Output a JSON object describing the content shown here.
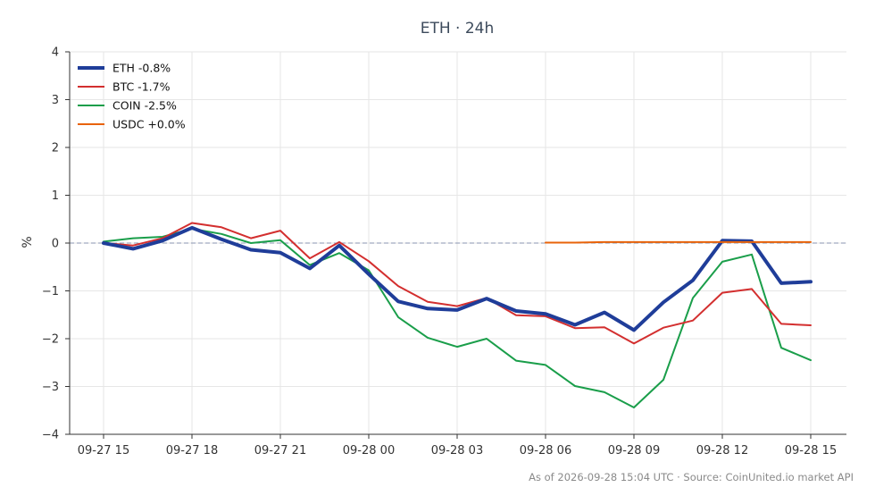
{
  "chart_data": {
    "type": "line",
    "title": "ETH · 24h",
    "xlabel": "",
    "ylabel": "%",
    "ylim": [
      -4,
      4
    ],
    "yticks": [
      4,
      3,
      2,
      1,
      0,
      -1,
      -2,
      -3,
      -4
    ],
    "xticks": [
      "09-27 15",
      "09-27 18",
      "09-27 21",
      "09-28 00",
      "09-28 03",
      "09-28 06",
      "09-28 09",
      "09-28 12",
      "09-28 15"
    ],
    "x": [
      "09-27 15",
      "09-27 16",
      "09-27 17",
      "09-27 18",
      "09-27 19",
      "09-27 20",
      "09-27 21",
      "09-27 22",
      "09-27 23",
      "09-28 00",
      "09-28 01",
      "09-28 02",
      "09-28 03",
      "09-28 04",
      "09-28 05",
      "09-28 06",
      "09-28 07",
      "09-28 08",
      "09-28 09",
      "09-28 10",
      "09-28 11",
      "09-28 12",
      "09-28 13",
      "09-28 14",
      "09-28 15"
    ],
    "grid": true,
    "zero_line": true,
    "legend_position": "top-left",
    "series": [
      {
        "name": "ETH -0.8%",
        "color": "#1f3d99",
        "width": 4,
        "values": [
          0.0,
          -0.12,
          0.05,
          0.32,
          0.08,
          -0.14,
          -0.2,
          -0.53,
          -0.05,
          -0.65,
          -1.22,
          -1.37,
          -1.4,
          -1.16,
          -1.42,
          -1.48,
          -1.71,
          -1.45,
          -1.82,
          -1.24,
          -0.78,
          0.05,
          0.04,
          -0.84,
          -0.81
        ]
      },
      {
        "name": "BTC -1.7%",
        "color": "#d32f2f",
        "width": 2,
        "values": [
          0.0,
          -0.05,
          0.1,
          0.42,
          0.33,
          0.1,
          0.26,
          -0.32,
          0.02,
          -0.38,
          -0.9,
          -1.23,
          -1.32,
          -1.15,
          -1.51,
          -1.53,
          -1.78,
          -1.76,
          -2.1,
          -1.77,
          -1.62,
          -1.04,
          -0.96,
          -1.69,
          -1.72
        ]
      },
      {
        "name": "COIN -2.5%",
        "color": "#1a9e4a",
        "width": 2,
        "values": [
          0.03,
          0.1,
          0.13,
          0.3,
          0.19,
          0.0,
          0.06,
          -0.46,
          -0.21,
          -0.57,
          -1.55,
          -1.98,
          -2.17,
          -2.0,
          -2.46,
          -2.55,
          -2.99,
          -3.12,
          -3.44,
          -2.86,
          -1.15,
          -0.39,
          -0.24,
          -2.19,
          -2.45
        ]
      },
      {
        "name": "USDC +0.0%",
        "color": "#e8630a",
        "width": 2,
        "values": [
          null,
          null,
          null,
          null,
          null,
          null,
          null,
          null,
          null,
          null,
          null,
          null,
          null,
          null,
          null,
          0.01,
          0.01,
          0.02,
          0.02,
          0.02,
          0.02,
          0.02,
          0.02,
          0.02,
          0.02
        ]
      }
    ]
  },
  "footer": {
    "source": "As of 2026-09-28 15:04 UTC · Source: CoinUnited.io market API"
  }
}
